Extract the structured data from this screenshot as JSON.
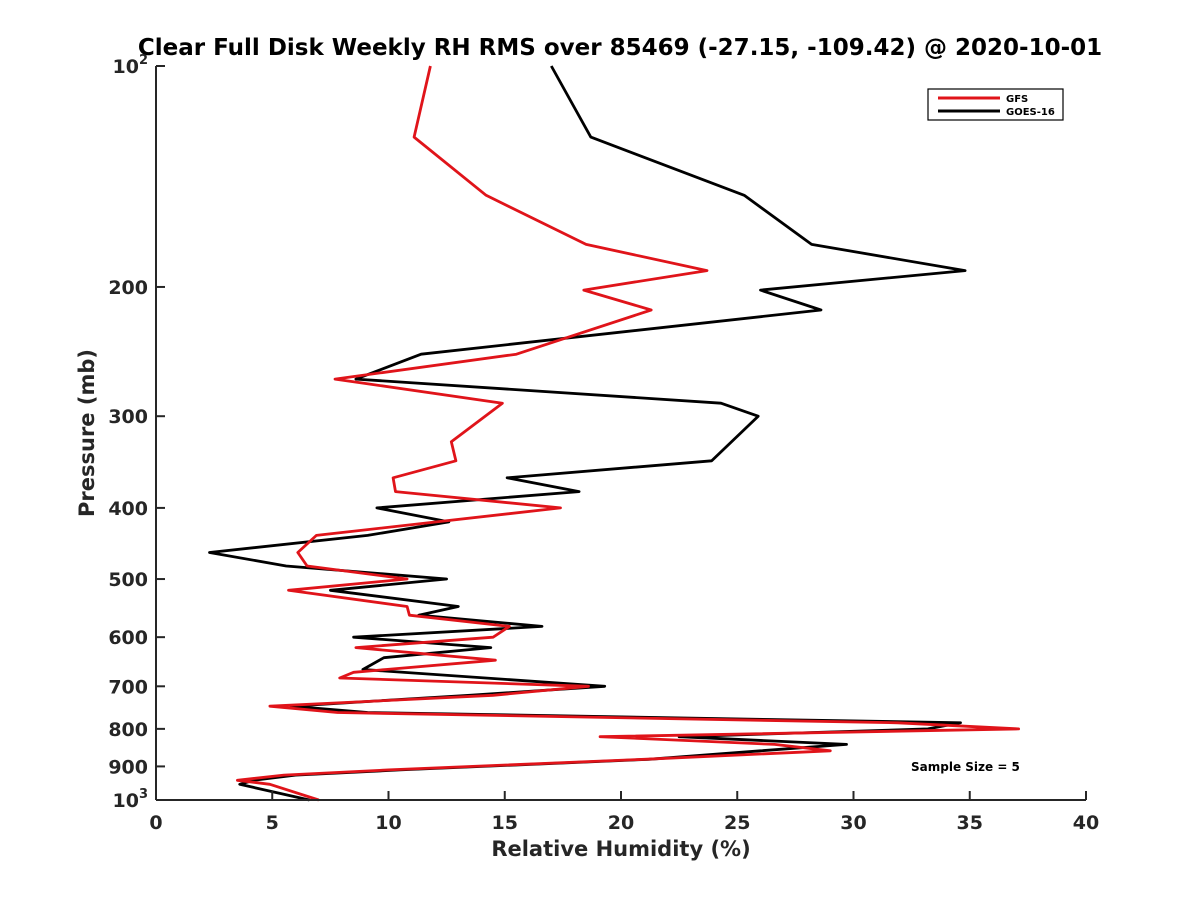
{
  "chart_data": {
    "type": "line",
    "title": "Clear Full Disk Weekly RH RMS over 85469 (-27.15, -109.42) @ 2020-10-01",
    "xlabel": "Relative Humidity (%)",
    "ylabel": "Pressure (mb)",
    "xlim": [
      0,
      40
    ],
    "ylim": [
      100,
      1000
    ],
    "y_scale": "log",
    "y_reversed": true,
    "xticks": [
      0,
      5,
      10,
      15,
      20,
      25,
      30,
      35,
      40
    ],
    "xtick_labels": [
      "0",
      "5",
      "10",
      "15",
      "20",
      "25",
      "30",
      "35",
      "40"
    ],
    "yticks": [
      100,
      200,
      300,
      400,
      500,
      600,
      700,
      800,
      900,
      1000
    ],
    "ytick_labels": [
      {
        "base": "10",
        "sup": "2"
      },
      {
        "base": "200"
      },
      {
        "base": "300"
      },
      {
        "base": "400"
      },
      {
        "base": "500"
      },
      {
        "base": "600"
      },
      {
        "base": "700"
      },
      {
        "base": "800"
      },
      {
        "base": "900"
      },
      {
        "base": "10",
        "sup": "3"
      }
    ],
    "grid": false,
    "legend_position": "top-right",
    "annotation": "Sample Size = 5",
    "series": [
      {
        "name": "GFS",
        "color": "#e0141a",
        "points": [
          [
            11.8,
            100
          ],
          [
            11.1,
            125
          ],
          [
            14.2,
            150
          ],
          [
            18.5,
            175
          ],
          [
            23.7,
            190
          ],
          [
            18.4,
            202
          ],
          [
            21.3,
            215
          ],
          [
            15.5,
            247
          ],
          [
            7.7,
            267
          ],
          [
            14.9,
            288
          ],
          [
            12.7,
            325
          ],
          [
            12.9,
            345
          ],
          [
            10.2,
            364
          ],
          [
            10.3,
            380
          ],
          [
            17.4,
            400
          ],
          [
            6.9,
            436
          ],
          [
            6.1,
            460
          ],
          [
            6.5,
            480
          ],
          [
            10.8,
            500
          ],
          [
            5.7,
            518
          ],
          [
            10.8,
            545
          ],
          [
            10.9,
            560
          ],
          [
            15.2,
            580
          ],
          [
            14.5,
            600
          ],
          [
            8.6,
            620
          ],
          [
            14.6,
            645
          ],
          [
            9.9,
            664
          ],
          [
            8.5,
            670
          ],
          [
            7.9,
            682
          ],
          [
            18.6,
            700
          ],
          [
            14.5,
            720
          ],
          [
            4.9,
            745
          ],
          [
            7.8,
            760
          ],
          [
            31.9,
            785
          ],
          [
            37.1,
            800
          ],
          [
            19.1,
            820
          ],
          [
            26.6,
            840
          ],
          [
            29.0,
            857
          ],
          [
            21.0,
            880
          ],
          [
            10.0,
            910
          ],
          [
            5.5,
            925
          ],
          [
            3.5,
            940
          ],
          [
            4.9,
            952
          ],
          [
            7.0,
            1000
          ]
        ]
      },
      {
        "name": "GOES-16",
        "color": "#000000",
        "points": [
          [
            17.0,
            100
          ],
          [
            18.7,
            125
          ],
          [
            25.3,
            150
          ],
          [
            28.2,
            175
          ],
          [
            34.8,
            190
          ],
          [
            26.0,
            202
          ],
          [
            28.6,
            215
          ],
          [
            11.4,
            247
          ],
          [
            8.6,
            267
          ],
          [
            24.3,
            288
          ],
          [
            25.9,
            300
          ],
          [
            23.9,
            345
          ],
          [
            15.1,
            364
          ],
          [
            18.2,
            380
          ],
          [
            9.5,
            400
          ],
          [
            12.6,
            418
          ],
          [
            9.1,
            436
          ],
          [
            2.3,
            460
          ],
          [
            5.6,
            480
          ],
          [
            12.5,
            500
          ],
          [
            7.5,
            518
          ],
          [
            13.0,
            545
          ],
          [
            11.3,
            560
          ],
          [
            16.6,
            580
          ],
          [
            8.5,
            600
          ],
          [
            14.4,
            620
          ],
          [
            9.8,
            640
          ],
          [
            8.9,
            664
          ],
          [
            19.3,
            700
          ],
          [
            13.5,
            720
          ],
          [
            5.8,
            745
          ],
          [
            9.1,
            760
          ],
          [
            34.6,
            785
          ],
          [
            33.2,
            800
          ],
          [
            22.5,
            820
          ],
          [
            29.7,
            840
          ],
          [
            26.0,
            857
          ],
          [
            21.2,
            880
          ],
          [
            10.5,
            910
          ],
          [
            6.0,
            925
          ],
          [
            4.2,
            940
          ],
          [
            3.6,
            952
          ],
          [
            6.6,
            1000
          ]
        ]
      }
    ]
  }
}
